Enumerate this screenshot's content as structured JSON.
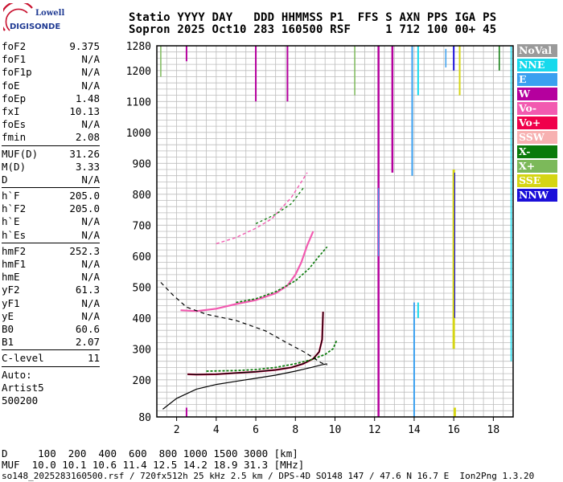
{
  "logo": {
    "line1": "Lowell",
    "line2": "DIGISONDE"
  },
  "header": {
    "line1": "Statio YYYY DAY   DDD HHMMSS P1  FFS S AXN PPS IGA PS",
    "line2": "Sopron 2025 Oct10 283 160500 RSF     1 712 100 00+ 45"
  },
  "params": {
    "g1": [
      {
        "label": "foF2",
        "value": "9.375"
      },
      {
        "label": "foF1",
        "value": "N/A"
      },
      {
        "label": "foF1p",
        "value": "N/A"
      },
      {
        "label": "foE",
        "value": "N/A"
      },
      {
        "label": "foEp",
        "value": "1.48"
      },
      {
        "label": "fxI",
        "value": "10.13"
      },
      {
        "label": "foEs",
        "value": "N/A"
      },
      {
        "label": "fmin",
        "value": "2.08"
      }
    ],
    "g2": [
      {
        "label": "MUF(D)",
        "value": "31.26"
      },
      {
        "label": "M(D)",
        "value": "3.33"
      },
      {
        "label": "D",
        "value": "N/A"
      }
    ],
    "g3": [
      {
        "label": "h`F",
        "value": "205.0"
      },
      {
        "label": "h`F2",
        "value": "205.0"
      },
      {
        "label": "h`E",
        "value": "N/A"
      },
      {
        "label": "h`Es",
        "value": "N/A"
      }
    ],
    "g4": [
      {
        "label": "hmF2",
        "value": "252.3"
      },
      {
        "label": "hmF1",
        "value": "N/A"
      },
      {
        "label": "hmE",
        "value": "N/A"
      },
      {
        "label": "yF2",
        "value": "61.3"
      },
      {
        "label": "yF1",
        "value": "N/A"
      },
      {
        "label": "yE",
        "value": "N/A"
      },
      {
        "label": "B0",
        "value": "60.6"
      },
      {
        "label": "B1",
        "value": "2.07"
      }
    ],
    "g5": [
      {
        "label": "C-level",
        "value": "11"
      }
    ],
    "auto": [
      "Auto:",
      "Artist5",
      "500200"
    ]
  },
  "legend": [
    {
      "label": "NoVal",
      "color": "#9a9a9a"
    },
    {
      "label": "NNE",
      "color": "#17d9ec"
    },
    {
      "label": "E",
      "color": "#3aa0f0"
    },
    {
      "label": "W",
      "color": "#b5009e"
    },
    {
      "label": "Vo-",
      "color": "#f25ab0"
    },
    {
      "label": "Vo+",
      "color": "#f0004b"
    },
    {
      "label": "SSW",
      "color": "#f7b1b1"
    },
    {
      "label": "X-",
      "color": "#0a7a0a"
    },
    {
      "label": "X+",
      "color": "#7cb95a"
    },
    {
      "label": "SSE",
      "color": "#d5d514"
    },
    {
      "label": "NNW",
      "color": "#1b0fd9"
    }
  ],
  "chart_data": {
    "type": "scatter",
    "xlim": [
      1,
      19
    ],
    "ylim": [
      80,
      1280
    ],
    "x_ticks": [
      2,
      4,
      6,
      8,
      10,
      12,
      14,
      16,
      18
    ],
    "y_ticks": [
      80,
      200,
      300,
      400,
      500,
      600,
      700,
      800,
      900,
      1000,
      1100,
      1200,
      1280
    ],
    "grid": true
  },
  "footer_table": {
    "row1": "D     100  200  400  600  800 1000 1500 3000 [km]",
    "row2": "MUF  10.0 10.1 10.6 11.4 12.5 14.2 18.9 31.3 [MHz]"
  },
  "footer": "so148_2025283160500.rsf / 720fx512h 25 kHz 2.5 km / DPS-4D SO148 147 / 47.6 N 16.7 E  Ion2Png 1.3.20"
}
